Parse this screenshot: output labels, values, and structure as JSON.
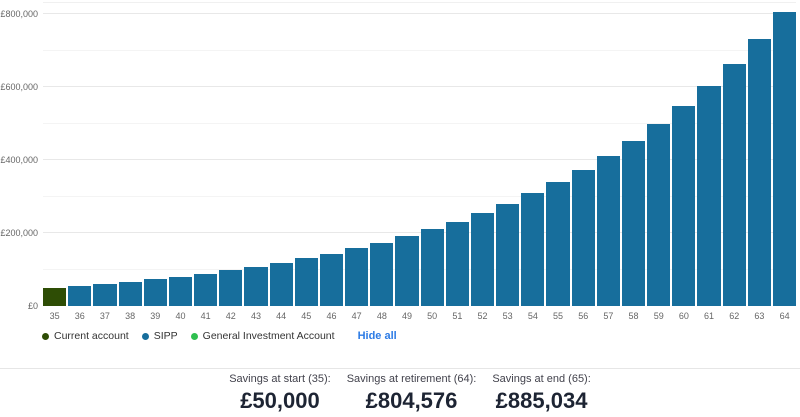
{
  "colors": {
    "current_account": "#2e4d05",
    "sipp": "#176e9c",
    "general_investment_account": "#2fbf4f",
    "link_blue": "#2c7be5",
    "axis_text": "#666666",
    "grid_major": "#e8e8e8",
    "grid_minor": "#f4f4f4",
    "divider": "#e6e6e6",
    "stat_value_text": "#1d2433"
  },
  "chart_data": {
    "type": "bar",
    "title": "",
    "xlabel": "",
    "ylabel": "",
    "categories": [
      "35",
      "36",
      "37",
      "38",
      "39",
      "40",
      "41",
      "42",
      "43",
      "44",
      "45",
      "46",
      "47",
      "48",
      "49",
      "50",
      "51",
      "52",
      "53",
      "54",
      "55",
      "56",
      "57",
      "58",
      "59",
      "60",
      "61",
      "62",
      "63",
      "64"
    ],
    "series": [
      {
        "name": "Current account",
        "color": "#2e4d05",
        "values": [
          50000,
          0,
          0,
          0,
          0,
          0,
          0,
          0,
          0,
          0,
          0,
          0,
          0,
          0,
          0,
          0,
          0,
          0,
          0,
          0,
          0,
          0,
          0,
          0,
          0,
          0,
          0,
          0,
          0,
          0
        ]
      },
      {
        "name": "SIPP",
        "color": "#176e9c",
        "values": [
          0,
          55000,
          60600,
          66600,
          73300,
          80700,
          88800,
          97700,
          107600,
          118400,
          130300,
          143400,
          157800,
          173600,
          191100,
          210300,
          231400,
          254700,
          280300,
          308500,
          339500,
          373600,
          411100,
          452400,
          497900,
          548000,
          603000,
          663600,
          730300,
          804576
        ]
      }
    ],
    "y_ticks": [
      {
        "value": 0,
        "label": "£0"
      },
      {
        "value": 200000,
        "label": "£200,000"
      },
      {
        "value": 400000,
        "label": "£400,000"
      },
      {
        "value": 600000,
        "label": "£600,000"
      },
      {
        "value": 800000,
        "label": "£800,000"
      }
    ],
    "y_minor_step": 100000,
    "ylim": [
      0,
      833000
    ],
    "grid": true,
    "legend_position": "bottom"
  },
  "legend": {
    "items": [
      {
        "label": "Current account",
        "color": "#2e4d05"
      },
      {
        "label": "SIPP",
        "color": "#176e9c"
      },
      {
        "label": "General Investment Account",
        "color": "#2fbf4f"
      }
    ],
    "hide_all_label": "Hide all"
  },
  "stats": [
    {
      "label": "Savings at start (35):",
      "value": "£50,000"
    },
    {
      "label": "Savings at retirement (64):",
      "value": "£804,576"
    },
    {
      "label": "Savings at end (65):",
      "value": "£885,034"
    }
  ]
}
